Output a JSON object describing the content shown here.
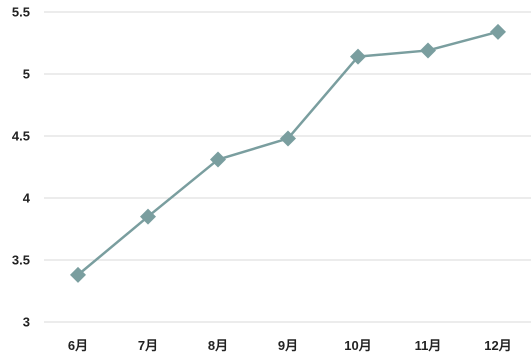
{
  "chart_data": {
    "type": "line",
    "categories": [
      "6月",
      "7月",
      "8月",
      "9月",
      "10月",
      "11月",
      "12月"
    ],
    "series": [
      {
        "values": [
          3.38,
          3.85,
          4.31,
          4.48,
          5.14,
          5.19,
          5.34
        ]
      }
    ],
    "title": "",
    "xlabel": "",
    "ylabel": "",
    "ylim": [
      3,
      5.5
    ],
    "yticks": [
      3,
      3.5,
      4,
      4.5,
      5,
      5.5
    ],
    "ytick_labels": [
      "3",
      "3.5",
      "4",
      "4.5",
      "5",
      "5.5"
    ],
    "grid": true,
    "legend": "none",
    "marker": "diamond",
    "colors": {
      "line": "#7a9e9f",
      "marker": "#7a9e9f",
      "grid": "#d9d9d9",
      "text": "#222222"
    }
  }
}
